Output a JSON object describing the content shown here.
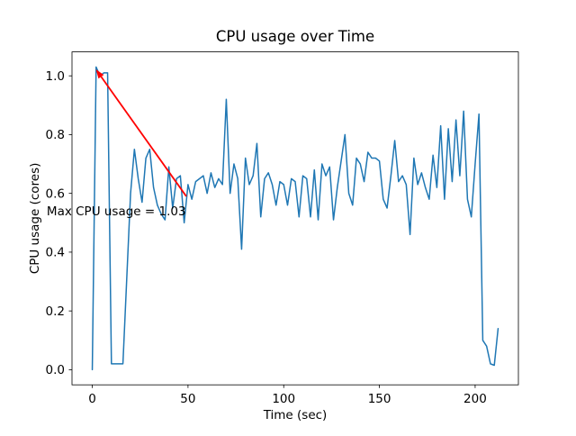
{
  "chart_data": {
    "type": "line",
    "title": "CPU usage over Time",
    "xlabel": "Time (sec)",
    "ylabel": "CPU usage (cores)",
    "x_ticks": [
      0,
      50,
      100,
      150,
      200
    ],
    "y_ticks": [
      0.0,
      0.2,
      0.4,
      0.6,
      0.8,
      1.0
    ],
    "xlim": [
      -10.6,
      222.6
    ],
    "ylim": [
      -0.0515,
      1.0815
    ],
    "grid": false,
    "legend": null,
    "line_color": "#1f77b4",
    "spine_color": "#000000",
    "background_color": "#ffffff",
    "series": [
      {
        "name": "cpu_usage_cores",
        "x_start": 0,
        "x_step": 2,
        "values": [
          0.0,
          1.03,
          1.0,
          1.01,
          1.01,
          0.02,
          0.02,
          0.02,
          0.02,
          0.31,
          0.6,
          0.75,
          0.65,
          0.57,
          0.72,
          0.75,
          0.62,
          0.56,
          0.53,
          0.51,
          0.69,
          0.55,
          0.65,
          0.66,
          0.5,
          0.63,
          0.58,
          0.64,
          0.65,
          0.66,
          0.6,
          0.67,
          0.62,
          0.65,
          0.63,
          0.92,
          0.6,
          0.7,
          0.65,
          0.41,
          0.72,
          0.63,
          0.66,
          0.77,
          0.52,
          0.65,
          0.67,
          0.63,
          0.56,
          0.64,
          0.63,
          0.56,
          0.65,
          0.64,
          0.52,
          0.66,
          0.65,
          0.52,
          0.68,
          0.51,
          0.7,
          0.66,
          0.69,
          0.51,
          0.62,
          0.71,
          0.8,
          0.6,
          0.56,
          0.72,
          0.7,
          0.64,
          0.74,
          0.72,
          0.72,
          0.71,
          0.58,
          0.55,
          0.66,
          0.78,
          0.64,
          0.66,
          0.63,
          0.46,
          0.72,
          0.63,
          0.67,
          0.62,
          0.58,
          0.73,
          0.62,
          0.83,
          0.58,
          0.82,
          0.64,
          0.85,
          0.66,
          0.88,
          0.58,
          0.52,
          0.7,
          0.87,
          0.1,
          0.08,
          0.02,
          0.015,
          0.14
        ]
      }
    ],
    "max_value": 1.03,
    "annotation": {
      "text": "Max CPU usage = 1.03",
      "color": "#ff0000",
      "xy": [
        2,
        1.03
      ],
      "text_xy": [
        -23.8,
        0.525
      ],
      "arrow_start": [
        49.1,
        0.59
      ],
      "arrow_end": [
        1.9,
        1.022
      ]
    }
  }
}
